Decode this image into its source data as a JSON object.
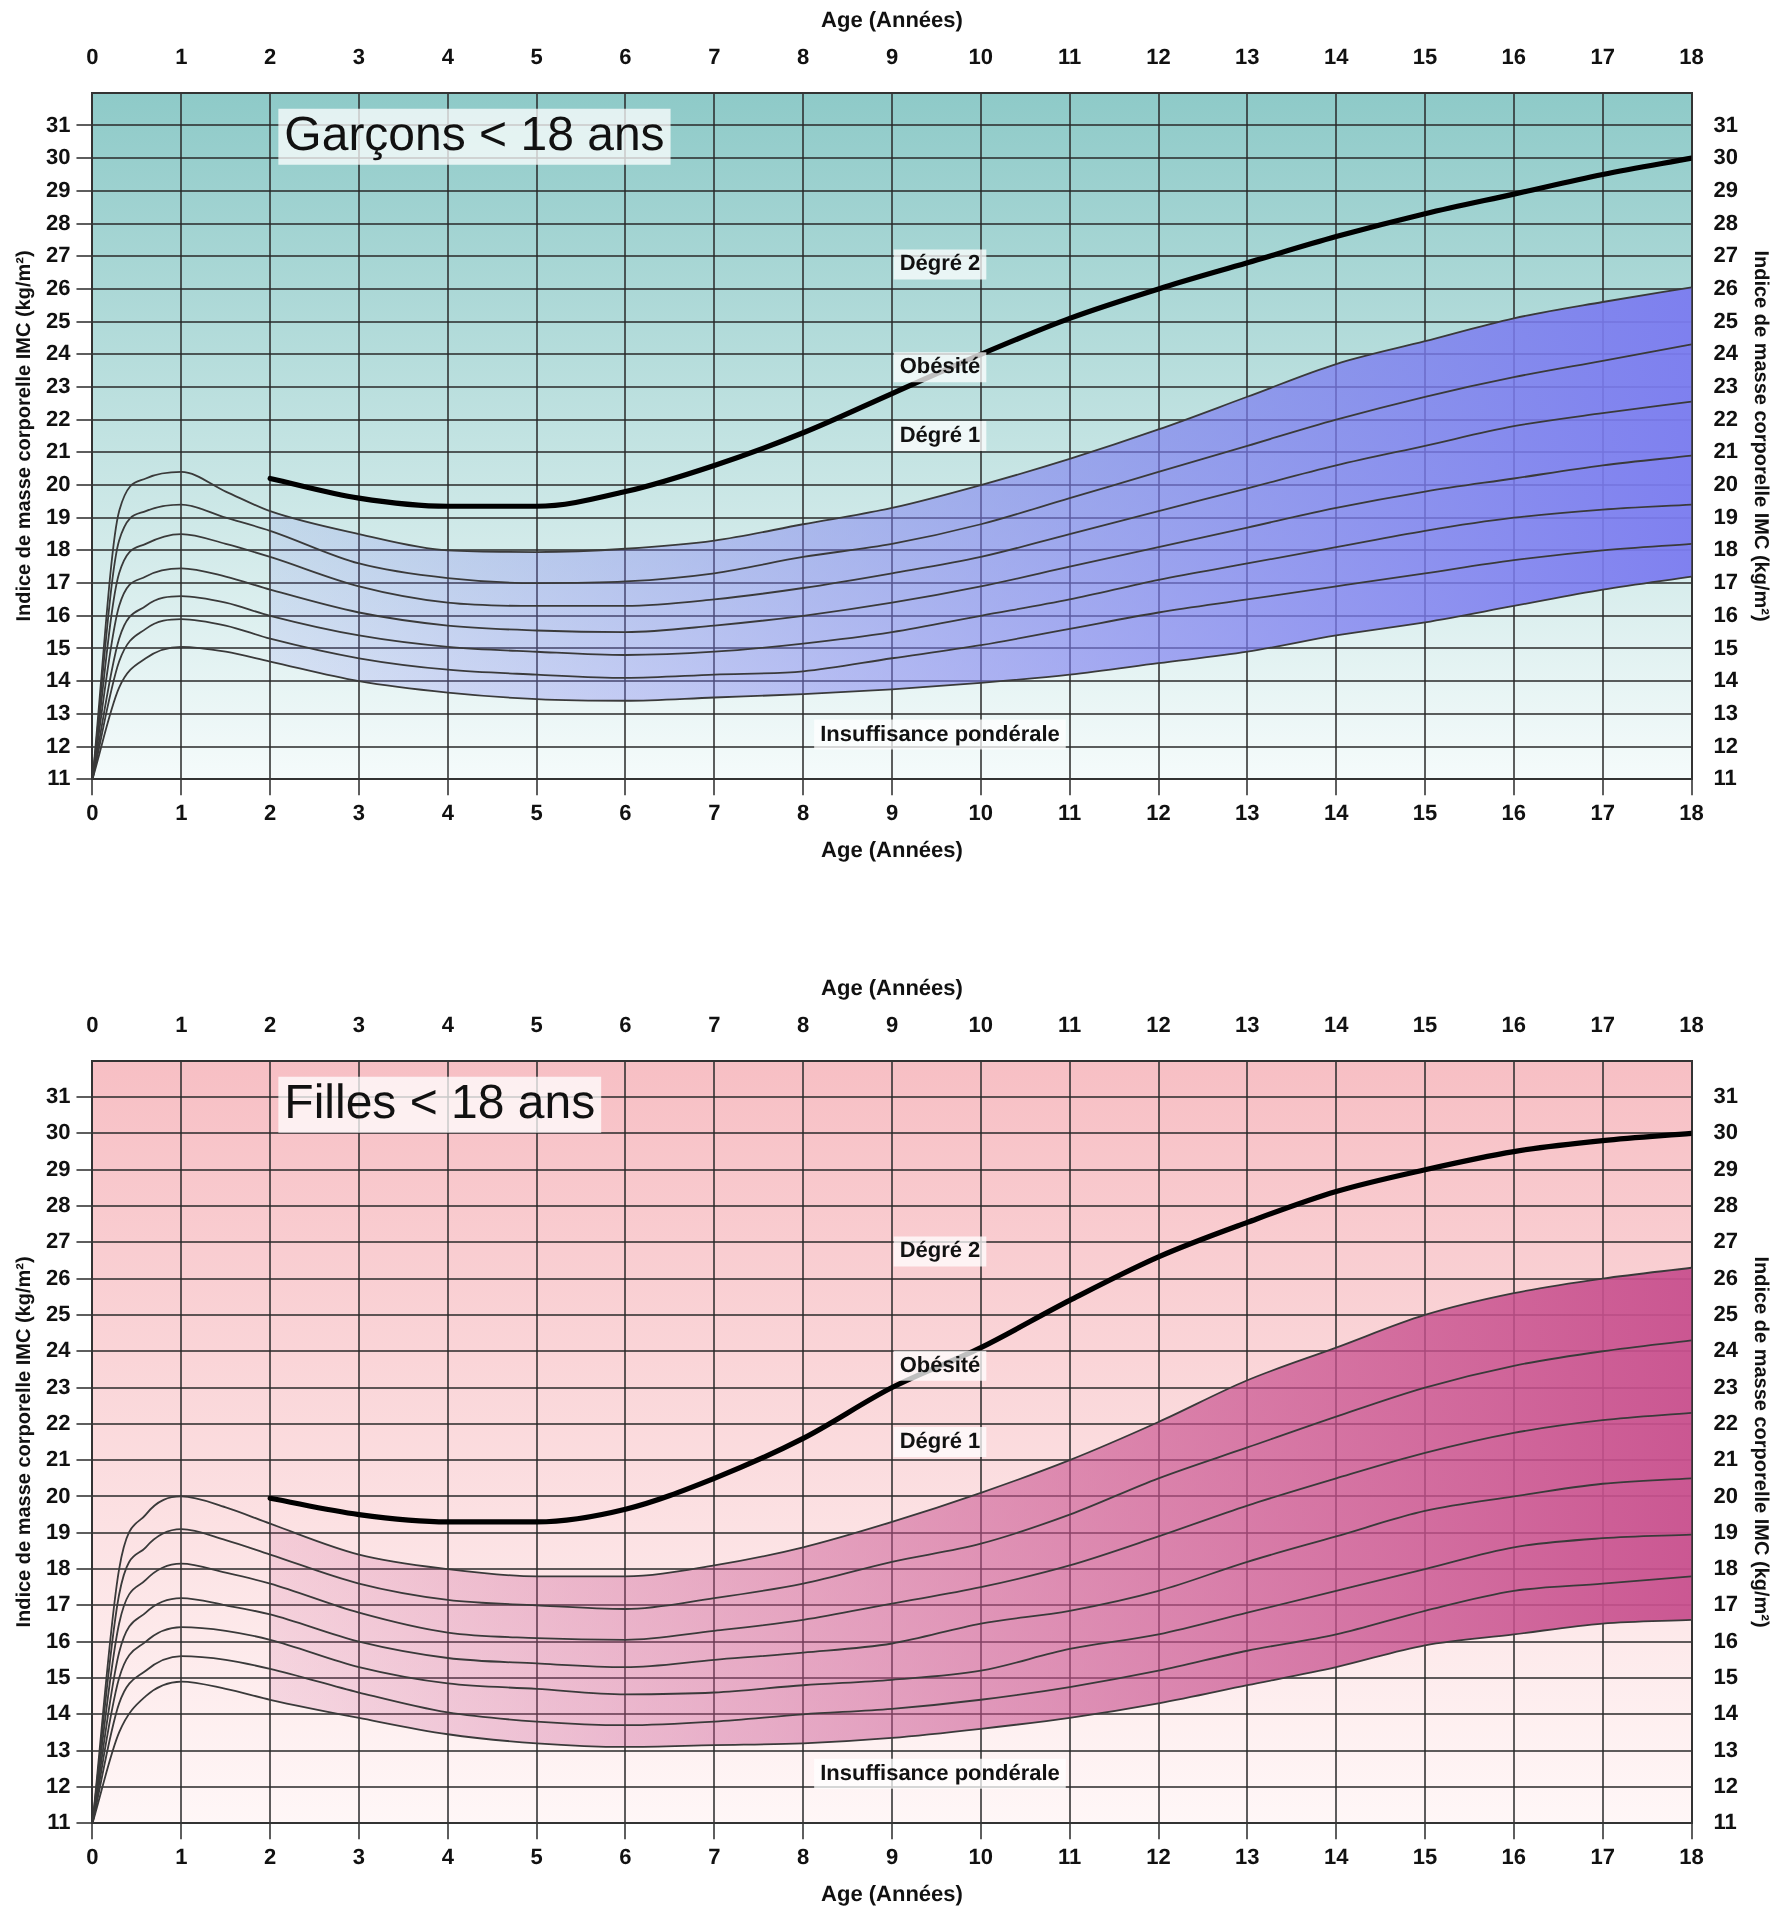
{
  "chart_data": [
    {
      "type": "line",
      "title": "Garçons < 18 ans",
      "xlabel": "Age (Années)",
      "x2label": "Age (Années)",
      "ylabel": "Indice de masse corporelle IMC (kg/m²)",
      "y2label": "Indice de masse corporelle IMC (kg/m²)",
      "xlim": [
        0,
        18
      ],
      "xticks": [
        0,
        1,
        2,
        3,
        4,
        5,
        6,
        7,
        8,
        9,
        10,
        11,
        12,
        13,
        14,
        15,
        16,
        17,
        18
      ],
      "x2lim": [
        0,
        18
      ],
      "x2ticks": [
        0,
        1,
        2,
        3,
        4,
        5,
        6,
        7,
        8,
        9,
        10,
        11,
        12,
        13,
        14,
        15,
        16,
        17,
        18
      ],
      "ylim": [
        11,
        32
      ],
      "yticks": [
        11,
        12,
        13,
        14,
        15,
        16,
        17,
        18,
        19,
        20,
        21,
        22,
        23,
        24,
        25,
        26,
        27,
        28,
        29,
        30,
        31
      ],
      "y2lim": [
        11,
        32
      ],
      "y2ticks": [
        11,
        12,
        13,
        14,
        15,
        16,
        17,
        18,
        19,
        20,
        21,
        22,
        23,
        24,
        25,
        26,
        27,
        28,
        29,
        30,
        31
      ],
      "grid": true,
      "legend": false,
      "x": [
        0,
        0.3,
        0.6,
        1,
        1.5,
        2,
        3,
        4,
        5,
        6,
        7,
        8,
        9,
        10,
        11,
        12,
        13,
        14,
        15,
        16,
        17,
        18
      ],
      "series": [
        {
          "color": "#3a3a3a",
          "values": [
            11,
            19.2,
            20.2,
            20.4,
            19.8,
            19.2,
            18.5,
            18.0,
            17.95,
            18.05,
            18.3,
            18.8,
            19.3,
            20.0,
            20.8,
            21.7,
            22.7,
            23.7,
            24.4,
            25.1,
            25.6,
            26.05
          ],
          "lower": [
            null,
            null,
            null,
            null,
            null,
            14.6,
            14.0,
            13.65,
            13.45,
            13.4,
            13.5,
            13.6,
            13.75,
            13.95,
            14.2,
            14.55,
            14.9,
            15.4,
            15.8,
            16.3,
            16.8,
            17.2
          ],
          "upper": [
            null,
            null,
            null,
            null,
            null,
            19.2,
            18.5,
            18.0,
            17.95,
            18.05,
            18.3,
            18.8,
            19.3,
            20.0,
            20.8,
            21.7,
            22.7,
            23.7,
            24.4,
            25.1,
            25.6,
            26.05
          ]
        },
        {
          "color": "#3a3a3a",
          "values": [
            11,
            18.3,
            19.2,
            19.4,
            19.0,
            18.6,
            17.6,
            17.15,
            17.0,
            17.05,
            17.3,
            17.8,
            18.2,
            18.8,
            19.6,
            20.4,
            21.2,
            22.0,
            22.7,
            23.3,
            23.8,
            24.3
          ]
        },
        {
          "color": "#3a3a3a",
          "values": [
            11,
            17.3,
            18.2,
            18.5,
            18.2,
            17.8,
            16.9,
            16.4,
            16.3,
            16.3,
            16.5,
            16.85,
            17.3,
            17.8,
            18.5,
            19.2,
            19.9,
            20.6,
            21.2,
            21.8,
            22.2,
            22.55
          ]
        },
        {
          "color": "#3a3a3a",
          "values": [
            11,
            16.3,
            17.2,
            17.45,
            17.2,
            16.8,
            16.1,
            15.7,
            15.55,
            15.5,
            15.7,
            16.0,
            16.4,
            16.9,
            17.5,
            18.1,
            18.7,
            19.3,
            19.8,
            20.2,
            20.6,
            20.9
          ]
        },
        {
          "color": "#3a3a3a",
          "values": [
            11,
            15.3,
            16.3,
            16.6,
            16.4,
            16.0,
            15.4,
            15.05,
            14.9,
            14.8,
            14.9,
            15.15,
            15.5,
            16.0,
            16.5,
            17.1,
            17.6,
            18.1,
            18.6,
            19.0,
            19.25,
            19.4
          ]
        },
        {
          "color": "#3a3a3a",
          "values": [
            11,
            14.6,
            15.6,
            15.9,
            15.7,
            15.3,
            14.7,
            14.35,
            14.2,
            14.1,
            14.2,
            14.3,
            14.7,
            15.1,
            15.6,
            16.1,
            16.5,
            16.9,
            17.3,
            17.7,
            18.0,
            18.2
          ]
        },
        {
          "color": "#3a3a3a",
          "values": [
            11,
            13.8,
            14.7,
            15.05,
            14.9,
            14.6,
            14.0,
            13.65,
            13.45,
            13.4,
            13.5,
            13.6,
            13.75,
            13.95,
            14.2,
            14.55,
            14.9,
            15.4,
            15.8,
            16.3,
            16.8,
            17.2
          ]
        },
        {
          "color": "#000000",
          "x": [
            2,
            3,
            4,
            5,
            6,
            7,
            8,
            9,
            10,
            11,
            12,
            13,
            14,
            15,
            16,
            17,
            18
          ],
          "values": [
            20.2,
            19.6,
            19.35,
            19.35,
            19.8,
            20.6,
            21.6,
            22.8,
            24.0,
            25.1,
            26.0,
            26.8,
            27.6,
            28.3,
            28.9,
            29.5,
            30.0
          ]
        }
      ],
      "annotations": [
        "Dégré 2",
        "Obésité",
        "Dégré 1",
        "Insuffisance pondérale"
      ]
    },
    {
      "type": "line",
      "title": "Filles < 18 ans",
      "xlabel": "Age (Années)",
      "x2label": "Age (Années)",
      "ylabel": "Indice de masse corporelle IMC (kg/m²)",
      "y2label": "Indice de masse corporelle IMC (kg/m²)",
      "xlim": [
        0,
        18
      ],
      "xticks": [
        0,
        1,
        2,
        3,
        4,
        5,
        6,
        7,
        8,
        9,
        10,
        11,
        12,
        13,
        14,
        15,
        16,
        17,
        18
      ],
      "x2lim": [
        0,
        18
      ],
      "x2ticks": [
        0,
        1,
        2,
        3,
        4,
        5,
        6,
        7,
        8,
        9,
        10,
        11,
        12,
        13,
        14,
        15,
        16,
        17,
        18
      ],
      "ylim": [
        11,
        32
      ],
      "yticks": [
        11,
        12,
        13,
        14,
        15,
        16,
        17,
        18,
        19,
        20,
        21,
        22,
        23,
        24,
        25,
        26,
        27,
        28,
        29,
        30,
        31
      ],
      "y2lim": [
        11,
        32
      ],
      "y2ticks": [
        11,
        12,
        13,
        14,
        15,
        16,
        17,
        18,
        19,
        20,
        21,
        22,
        23,
        24,
        25,
        26,
        27,
        28,
        29,
        30,
        31
      ],
      "grid": true,
      "legend": false,
      "x": [
        0,
        0.3,
        0.6,
        1,
        1.5,
        2,
        3,
        4,
        5,
        6,
        7,
        8,
        9,
        10,
        11,
        12,
        13,
        14,
        15,
        16,
        17,
        18
      ],
      "series": [
        {
          "color": "#3a3a3a",
          "values": [
            11,
            18.0,
            19.5,
            20.0,
            19.7,
            19.25,
            18.4,
            18.0,
            17.8,
            17.8,
            18.1,
            18.6,
            19.3,
            20.1,
            21.0,
            22.05,
            23.2,
            24.1,
            25.0,
            25.6,
            26.0,
            26.3
          ],
          "lower": [
            null,
            null,
            null,
            null,
            null,
            14.4,
            13.9,
            13.45,
            13.2,
            13.1,
            13.15,
            13.2,
            13.35,
            13.6,
            13.9,
            14.3,
            14.8,
            15.3,
            15.9,
            16.2,
            16.5,
            16.6
          ],
          "upper": [
            null,
            null,
            null,
            null,
            null,
            19.25,
            18.4,
            18.0,
            17.8,
            17.8,
            18.1,
            18.6,
            19.3,
            20.1,
            21.0,
            22.05,
            23.2,
            24.1,
            25.0,
            25.6,
            26.0,
            26.3
          ]
        },
        {
          "color": "#3a3a3a",
          "values": [
            11,
            17.3,
            18.6,
            19.1,
            18.8,
            18.4,
            17.6,
            17.15,
            17.0,
            16.9,
            17.2,
            17.6,
            18.2,
            18.7,
            19.5,
            20.5,
            21.35,
            22.2,
            23.0,
            23.6,
            24.0,
            24.3
          ]
        },
        {
          "color": "#3a3a3a",
          "values": [
            11,
            16.5,
            17.7,
            18.15,
            17.9,
            17.6,
            16.8,
            16.25,
            16.1,
            16.05,
            16.3,
            16.6,
            17.05,
            17.5,
            18.1,
            18.9,
            19.75,
            20.5,
            21.2,
            21.75,
            22.1,
            22.3
          ]
        },
        {
          "color": "#3a3a3a",
          "values": [
            11,
            15.7,
            16.8,
            17.2,
            17.0,
            16.75,
            16.0,
            15.55,
            15.4,
            15.3,
            15.5,
            15.7,
            15.95,
            16.5,
            16.85,
            17.4,
            18.2,
            18.9,
            19.6,
            20.0,
            20.35,
            20.5
          ]
        },
        {
          "color": "#3a3a3a",
          "values": [
            11,
            15.0,
            16.0,
            16.4,
            16.3,
            16.05,
            15.3,
            14.85,
            14.7,
            14.55,
            14.6,
            14.8,
            14.95,
            15.2,
            15.8,
            16.2,
            16.8,
            17.4,
            18.0,
            18.6,
            18.85,
            18.95
          ]
        },
        {
          "color": "#3a3a3a",
          "values": [
            11,
            14.3,
            15.2,
            15.6,
            15.5,
            15.25,
            14.6,
            14.05,
            13.8,
            13.7,
            13.8,
            14.0,
            14.15,
            14.4,
            14.75,
            15.2,
            15.75,
            16.2,
            16.85,
            17.4,
            17.6,
            17.8
          ]
        },
        {
          "color": "#3a3a3a",
          "values": [
            11,
            13.5,
            14.5,
            14.9,
            14.7,
            14.4,
            13.9,
            13.45,
            13.2,
            13.1,
            13.15,
            13.2,
            13.35,
            13.6,
            13.9,
            14.3,
            14.8,
            15.3,
            15.9,
            16.2,
            16.5,
            16.6
          ]
        },
        {
          "color": "#000000",
          "x": [
            2,
            3,
            4,
            5,
            6,
            7,
            8,
            9,
            10,
            11,
            12,
            13,
            14,
            15,
            16,
            17,
            18
          ],
          "values": [
            19.95,
            19.5,
            19.3,
            19.3,
            19.65,
            20.5,
            21.6,
            23.0,
            24.1,
            25.4,
            26.6,
            27.55,
            28.4,
            29.0,
            29.5,
            29.8,
            30.0
          ]
        }
      ],
      "annotations": [
        "Dégré 2",
        "Obésité",
        "Dégré 1",
        "Insuffisance pondérale"
      ]
    }
  ]
}
